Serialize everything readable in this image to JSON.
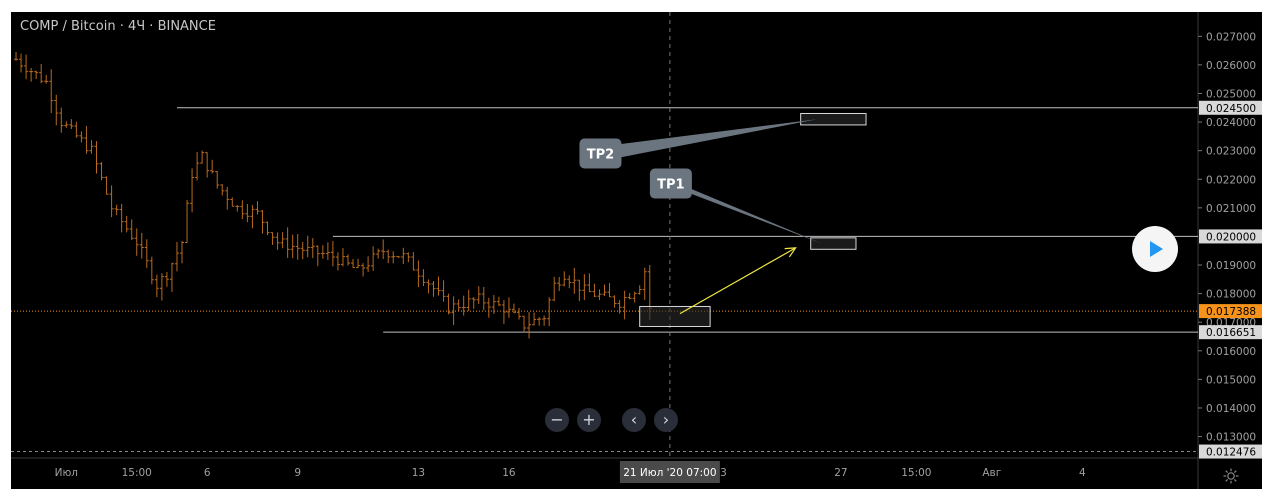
{
  "header": {
    "title": "COMP / Bitcoin · 4Ч · BINANCE"
  },
  "controls": {
    "zoom_out": "−",
    "zoom_in": "+",
    "scroll_left": "‹",
    "scroll_right": "›"
  },
  "colors": {
    "background": "#000000",
    "candle": "#b86a1e",
    "price_line": "#f7931a",
    "level_line": "#c0c0c0",
    "arrow": "#f0e640",
    "label_box": "#6b7580",
    "axis_text": "#a0a0a0",
    "play": "#2196f3"
  },
  "chart_data": {
    "type": "candlestick",
    "title": "COMP / Bitcoin · 4Ч · BINANCE",
    "y_ticks": [
      "0.027000",
      "0.026000",
      "0.025000",
      "0.024000",
      "0.023000",
      "0.022000",
      "0.021000",
      "0.019000",
      "0.018000",
      "0.017000",
      "0.016000",
      "0.015000",
      "0.014000",
      "0.013000"
    ],
    "y_tick_values": [
      0.027,
      0.026,
      0.025,
      0.024,
      0.023,
      0.022,
      0.021,
      0.019,
      0.018,
      0.017,
      0.016,
      0.015,
      0.014,
      0.013
    ],
    "ylim": [
      0.01225,
      0.02785
    ],
    "price_labels": [
      {
        "value": 0.0245,
        "text": "0.024500",
        "style": "level"
      },
      {
        "value": 0.02,
        "text": "0.020000",
        "style": "level"
      },
      {
        "value": 0.017388,
        "text": "0.017388",
        "style": "current"
      },
      {
        "value": 0.016651,
        "text": "0.016651",
        "style": "level"
      },
      {
        "value": 0.012476,
        "text": "0.012476",
        "style": "level"
      }
    ],
    "x_ticks": [
      {
        "label": "Июл",
        "t": 10
      },
      {
        "label": "15:00",
        "t": 24
      },
      {
        "label": "6",
        "t": 38
      },
      {
        "label": "9",
        "t": 56
      },
      {
        "label": "13",
        "t": 80
      },
      {
        "label": "16",
        "t": 98
      },
      {
        "label": "23",
        "t": 140
      },
      {
        "label": "27",
        "t": 164
      },
      {
        "label": "15:00",
        "t": 179
      },
      {
        "label": "Авг",
        "t": 194
      },
      {
        "label": "4",
        "t": 212
      }
    ],
    "x_range": [
      -1,
      235
    ],
    "crosshair": {
      "label": "21 Июл '20  07:00",
      "t": 130
    },
    "horizontal_levels": [
      {
        "value": 0.0245,
        "t_start": 32
      },
      {
        "value": 0.02,
        "t_start": 63
      },
      {
        "value": 0.016651,
        "t_start": 73
      }
    ],
    "current_price": 0.017388,
    "targets": [
      {
        "label": "TP2",
        "box": {
          "t0": 156,
          "t1": 169,
          "p_low": 0.0239,
          "p_high": 0.0243
        },
        "callout_t": 116,
        "callout_p": 0.0229
      },
      {
        "label": "TP1",
        "box": {
          "t0": 158,
          "t1": 167,
          "p_low": 0.01955,
          "p_high": 0.01995
        },
        "callout_t": 130,
        "callout_p": 0.02185
      }
    ],
    "entry_zone": {
      "t0": 124,
      "t1": 138,
      "p_low": 0.01685,
      "p_high": 0.01755
    },
    "arrow": {
      "from_t": 132,
      "from_p": 0.0173,
      "to_t": 155,
      "to_p": 0.0196
    },
    "anchors": [
      {
        "t": 0,
        "p": 0.0262
      },
      {
        "t": 6,
        "p": 0.0254
      },
      {
        "t": 9,
        "p": 0.024
      },
      {
        "t": 15,
        "p": 0.023
      },
      {
        "t": 19,
        "p": 0.021
      },
      {
        "t": 24,
        "p": 0.0198
      },
      {
        "t": 28,
        "p": 0.0183
      },
      {
        "t": 30,
        "p": 0.0187
      },
      {
        "t": 33,
        "p": 0.0198
      },
      {
        "t": 35,
        "p": 0.0222
      },
      {
        "t": 37,
        "p": 0.0228
      },
      {
        "t": 40,
        "p": 0.0218
      },
      {
        "t": 44,
        "p": 0.021
      },
      {
        "t": 48,
        "p": 0.0208
      },
      {
        "t": 52,
        "p": 0.0198
      },
      {
        "t": 58,
        "p": 0.0195
      },
      {
        "t": 63,
        "p": 0.0193
      },
      {
        "t": 68,
        "p": 0.0188
      },
      {
        "t": 73,
        "p": 0.0195
      },
      {
        "t": 77,
        "p": 0.0193
      },
      {
        "t": 82,
        "p": 0.0184
      },
      {
        "t": 86,
        "p": 0.0175
      },
      {
        "t": 92,
        "p": 0.0178
      },
      {
        "t": 97,
        "p": 0.0175
      },
      {
        "t": 101,
        "p": 0.0169
      },
      {
        "t": 105,
        "p": 0.0172
      },
      {
        "t": 107,
        "p": 0.0183
      },
      {
        "t": 109,
        "p": 0.0187
      },
      {
        "t": 113,
        "p": 0.0181
      },
      {
        "t": 120,
        "p": 0.0177
      },
      {
        "t": 124,
        "p": 0.0183
      },
      {
        "t": 125,
        "p": 0.0188
      },
      {
        "t": 126,
        "p": 0.0175
      }
    ]
  }
}
